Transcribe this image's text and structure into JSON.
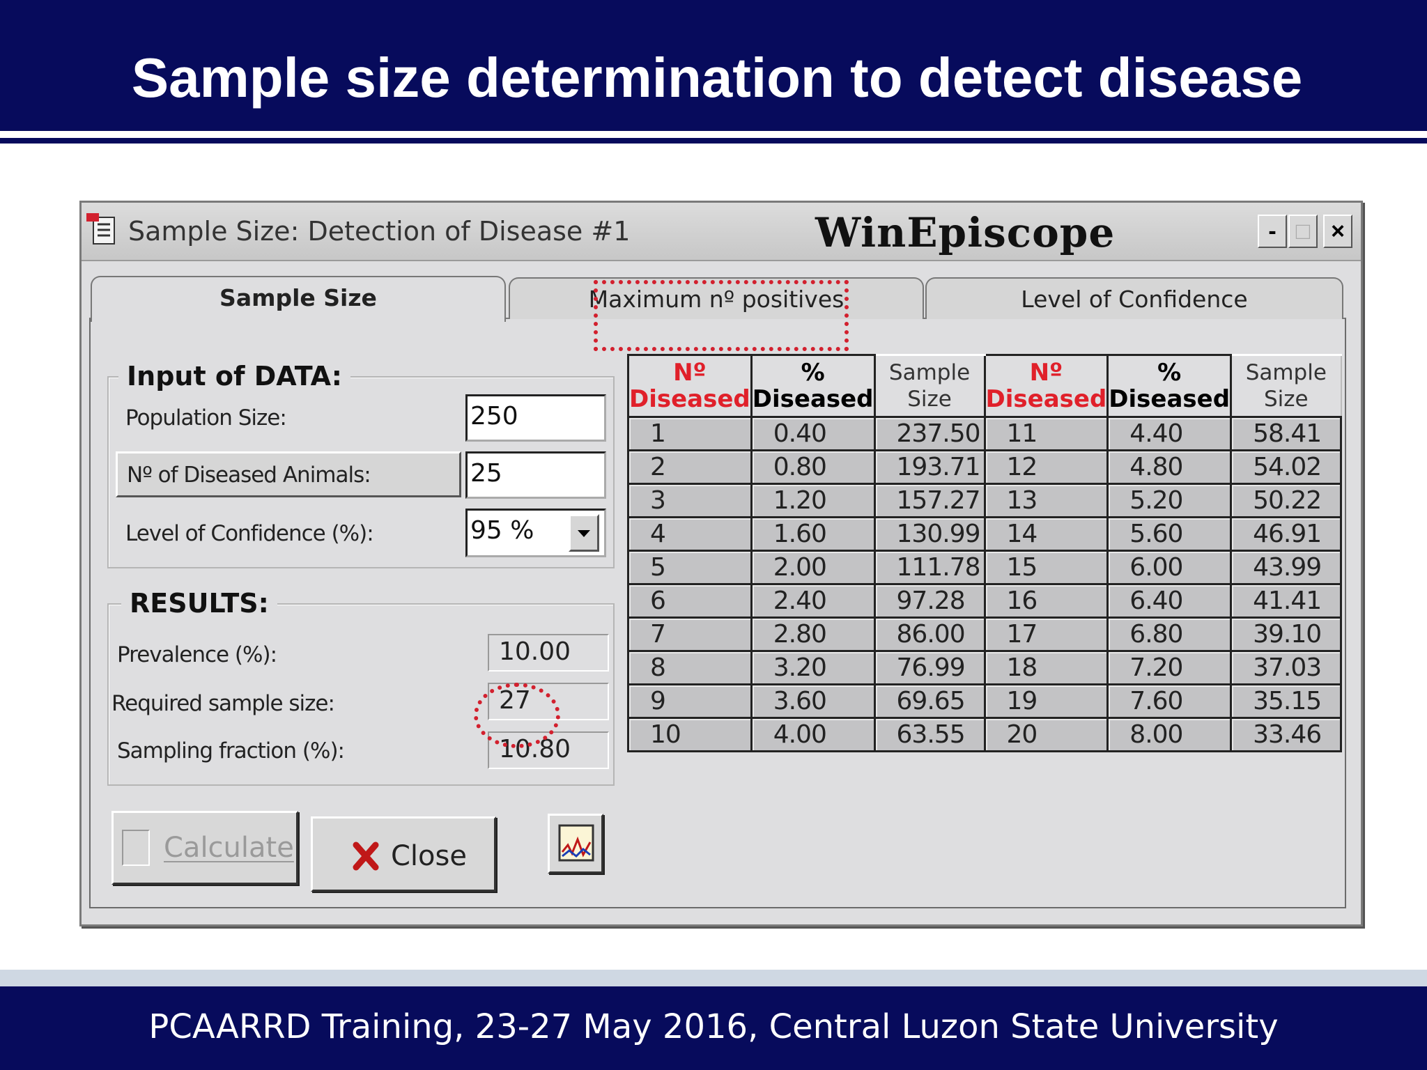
{
  "slide": {
    "title": "Sample size determination to detect disease",
    "footer": "PCAARRD Training, 23-27 May 2016, Central Luzon State University"
  },
  "window": {
    "title": "Sample Size: Detection of Disease  #1",
    "brand": "WinEpiscope",
    "controls": {
      "minimize": "-",
      "maximize": "□",
      "close": "×"
    }
  },
  "tabs": [
    {
      "label": "Sample Size",
      "active": true
    },
    {
      "label": "Maximum nº positives",
      "active": false
    },
    {
      "label": "Level of Confidence",
      "active": false
    }
  ],
  "input": {
    "group_label": "Input of DATA:",
    "population_label": "Population Size:",
    "population_value": "250",
    "diseased_label": "Nº of Diseased Animals:",
    "diseased_value": "25",
    "confidence_label": "Level of Confidence (%):",
    "confidence_value": "95 %"
  },
  "results": {
    "group_label": "RESULTS:",
    "prevalence_label": "Prevalence (%):",
    "prevalence_value": "10.00",
    "sample_size_label": "Required sample size:",
    "sample_size_value": "27",
    "fraction_label": "Sampling fraction (%):",
    "fraction_value": "10.80"
  },
  "buttons": {
    "calculate": "Calculate",
    "close": "Close",
    "graph_icon": "chart-icon"
  },
  "table": {
    "headers": {
      "n_line1": "Nº",
      "n_line2": "Diseased",
      "pct_line1": "%",
      "pct_line2": "Diseased",
      "ss_line1": "Sample",
      "ss_line2": "Size"
    },
    "rows": [
      [
        "1",
        "0.40",
        "237.50",
        "11",
        "4.40",
        "58.41"
      ],
      [
        "2",
        "0.80",
        "193.71",
        "12",
        "4.80",
        "54.02"
      ],
      [
        "3",
        "1.20",
        "157.27",
        "13",
        "5.20",
        "50.22"
      ],
      [
        "4",
        "1.60",
        "130.99",
        "14",
        "5.60",
        "46.91"
      ],
      [
        "5",
        "2.00",
        "111.78",
        "15",
        "6.00",
        "43.99"
      ],
      [
        "6",
        "2.40",
        "97.28",
        "16",
        "6.40",
        "41.41"
      ],
      [
        "7",
        "2.80",
        "86.00",
        "17",
        "6.80",
        "39.10"
      ],
      [
        "8",
        "3.20",
        "76.99",
        "18",
        "7.20",
        "37.03"
      ],
      [
        "9",
        "3.60",
        "69.65",
        "19",
        "7.60",
        "35.15"
      ],
      [
        "10",
        "4.00",
        "63.55",
        "20",
        "8.00",
        "33.46"
      ]
    ]
  },
  "colors": {
    "slide_navy": "#070b5c",
    "highlight_red": "#d2202e",
    "header_red": "#e0202a",
    "window_gray": "#dedee0"
  }
}
